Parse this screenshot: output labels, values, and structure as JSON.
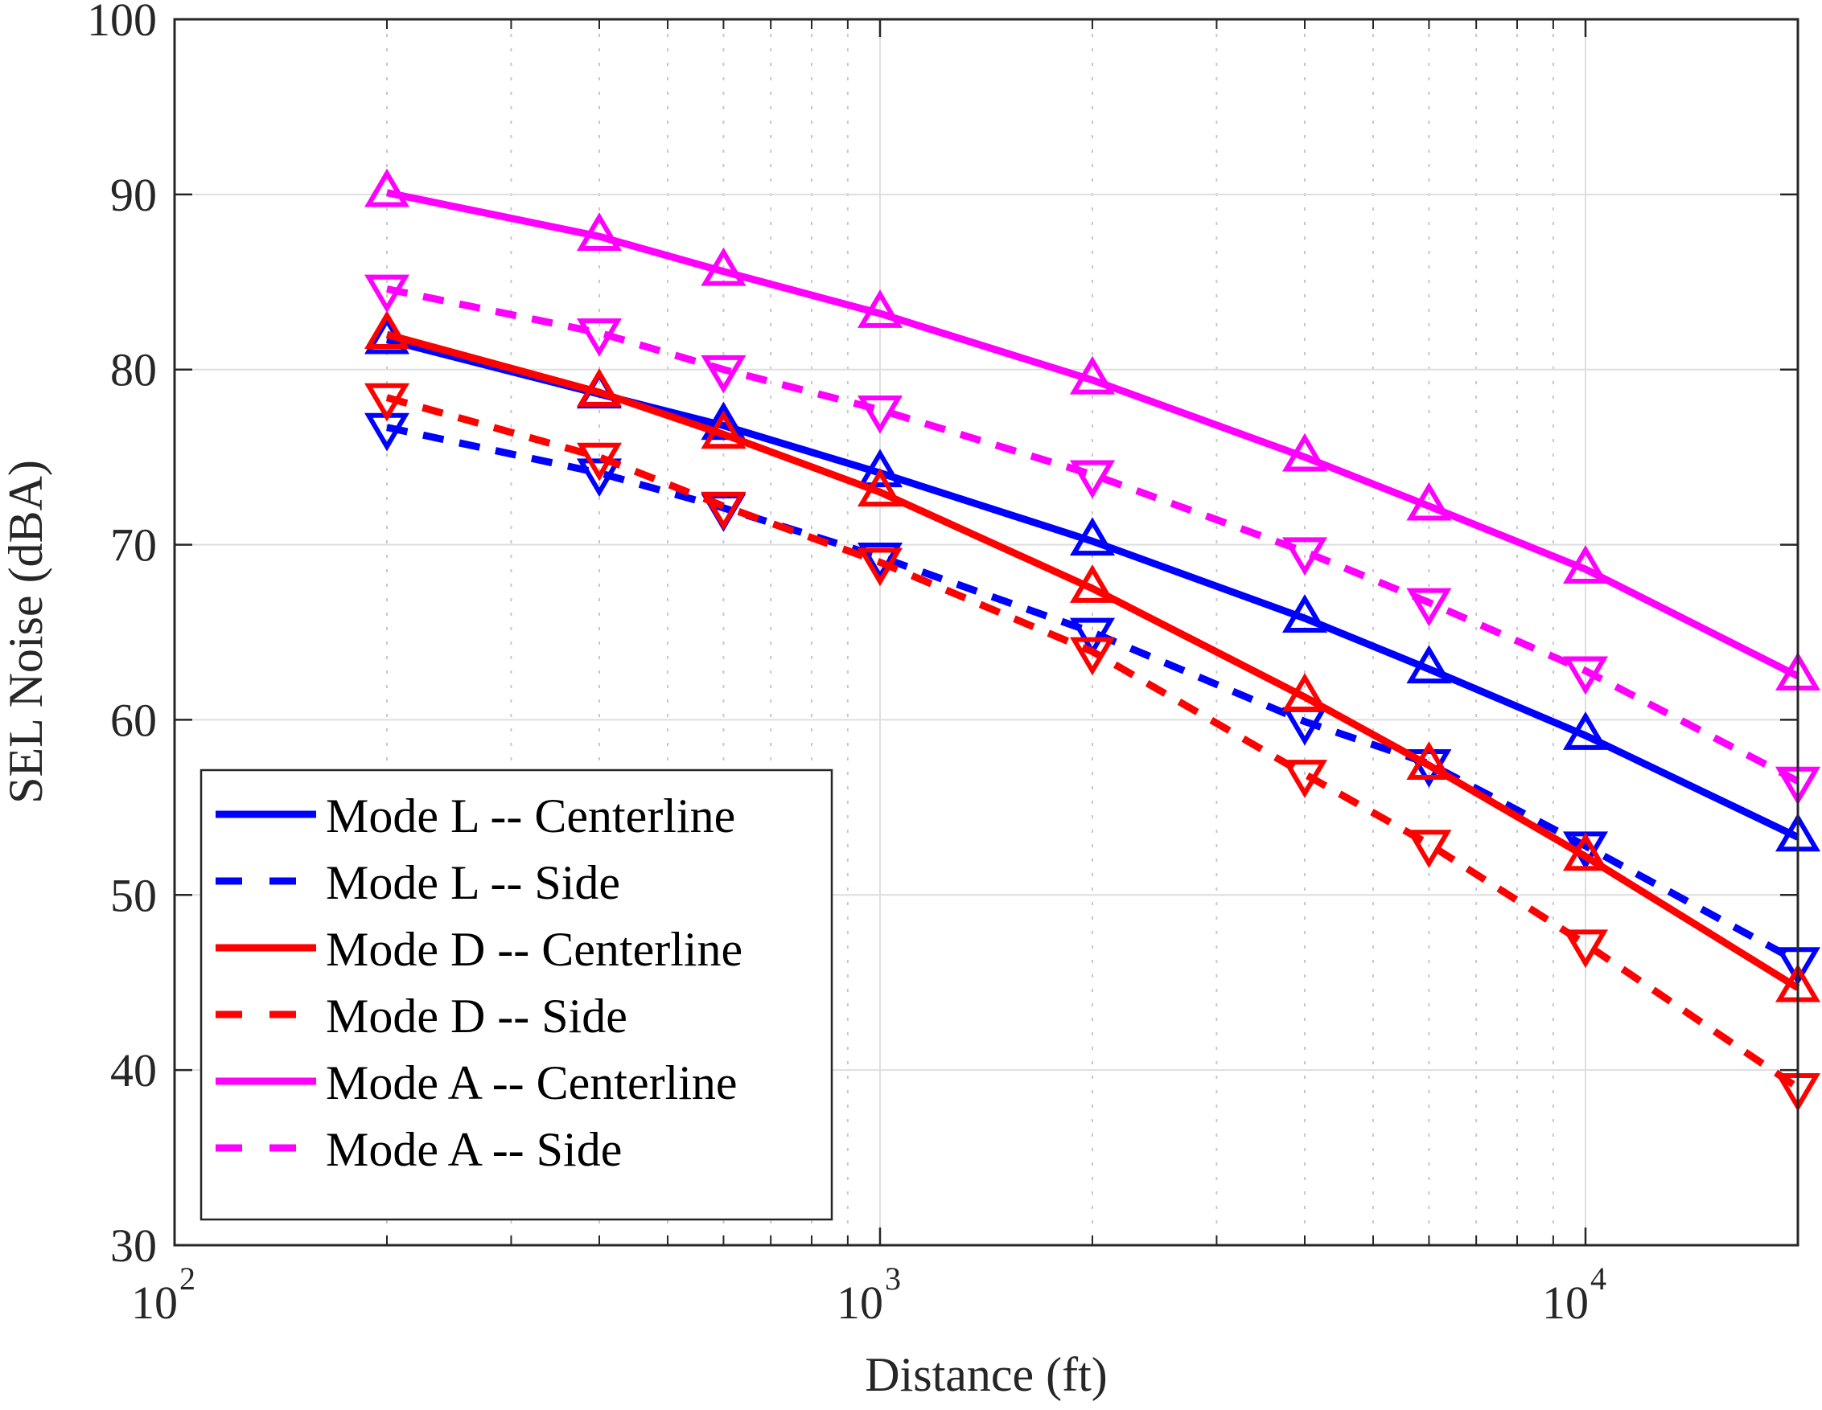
{
  "chart_data": {
    "type": "line",
    "title": "",
    "xlabel": "Distance (ft)",
    "ylabel": "SEL Noise (dBA)",
    "xscale": "log",
    "xlim": [
      100,
      20000
    ],
    "ylim": [
      30,
      100
    ],
    "xticks": [
      {
        "value": 100,
        "base": "10",
        "exp": "2"
      },
      {
        "value": 1000,
        "base": "10",
        "exp": "3"
      },
      {
        "value": 10000,
        "base": "10",
        "exp": "4"
      }
    ],
    "yticks": [
      30,
      40,
      50,
      60,
      70,
      80,
      90,
      100
    ],
    "ytick_labels": [
      "30",
      "40",
      "50",
      "60",
      "70",
      "80",
      "90",
      "100"
    ],
    "grid": true,
    "minor_grid_x": true,
    "legend_position": "lower-left",
    "x": [
      200,
      400,
      600,
      1000,
      2000,
      4000,
      6000,
      10000,
      20000
    ],
    "series": [
      {
        "name": "Mode L -- Centerline",
        "color": "#0000FF",
        "linestyle": "solid",
        "marker": "triangle-up",
        "values": [
          81.7,
          78.6,
          76.8,
          74.1,
          70.2,
          65.8,
          62.9,
          59.1,
          53.3
        ]
      },
      {
        "name": "Mode L -- Side",
        "color": "#0000FF",
        "linestyle": "dashed",
        "marker": "triangle-down",
        "values": [
          76.7,
          74.1,
          72.1,
          69.3,
          65.0,
          59.9,
          57.5,
          52.8,
          46.2
        ]
      },
      {
        "name": "Mode D -- Centerline",
        "color": "#FF0000",
        "linestyle": "solid",
        "marker": "triangle-up",
        "values": [
          82.0,
          78.7,
          76.3,
          73.0,
          67.5,
          61.3,
          57.4,
          52.2,
          44.7
        ]
      },
      {
        "name": "Mode D -- Side",
        "color": "#FF0000",
        "linestyle": "dashed",
        "marker": "triangle-down",
        "values": [
          78.4,
          75.0,
          72.2,
          69.0,
          63.9,
          56.9,
          52.9,
          47.2,
          39.0
        ]
      },
      {
        "name": "Mode A -- Centerline",
        "color": "#FF00FF",
        "linestyle": "solid",
        "marker": "triangle-up",
        "values": [
          90.1,
          87.6,
          85.6,
          83.2,
          79.4,
          75.0,
          72.2,
          68.6,
          62.5
        ]
      },
      {
        "name": "Mode A -- Side",
        "color": "#FF00FF",
        "linestyle": "dashed",
        "marker": "triangle-down",
        "values": [
          84.6,
          82.1,
          80.0,
          77.7,
          74.0,
          69.6,
          66.7,
          62.8,
          56.5
        ]
      }
    ]
  }
}
